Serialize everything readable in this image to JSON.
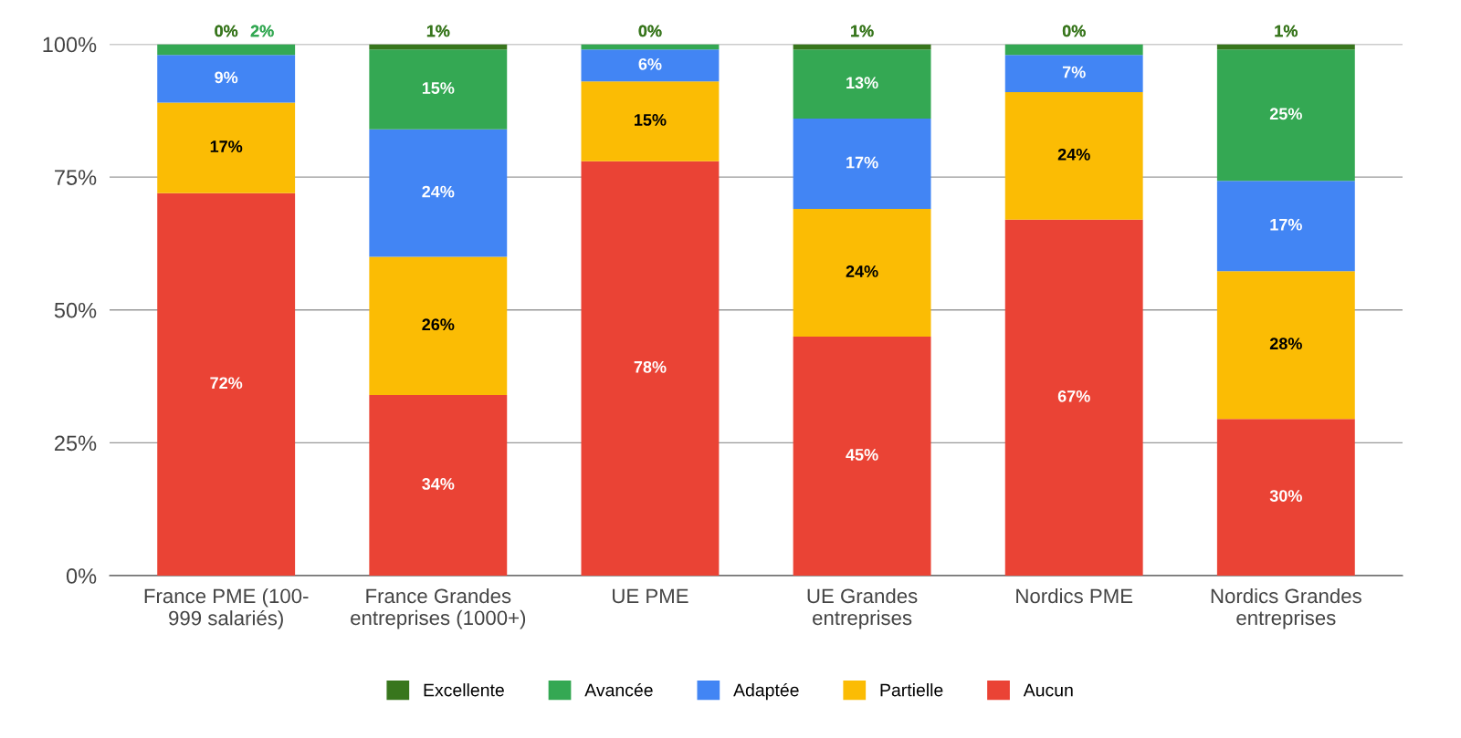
{
  "chart_data": {
    "type": "bar",
    "stacked": true,
    "categories": [
      "France PME (100-\n999 salariés)",
      "France Grandes\nentreprises (1000+)",
      "UE PME",
      "UE Grandes\nentreprises",
      "Nordics PME",
      "Nordics Grandes\nentreprises"
    ],
    "series": [
      {
        "name": "Aucun",
        "color": "#ea4335",
        "values": [
          72,
          34,
          78,
          45,
          67,
          29.5
        ],
        "value_labels": [
          "72%",
          "34%",
          "78%",
          "45%",
          "67%",
          "30%"
        ]
      },
      {
        "name": "Partielle",
        "color": "#fbbc04",
        "values": [
          17,
          26,
          15,
          24,
          24,
          27.8
        ],
        "value_labels": [
          "17%",
          "26%",
          "15%",
          "24%",
          "24%",
          "28%"
        ]
      },
      {
        "name": "Adaptée",
        "color": "#4285f4",
        "values": [
          9,
          24,
          6,
          17,
          7,
          17
        ],
        "value_labels": [
          "9%",
          "24%",
          "6%",
          "17%",
          "7%",
          "17%"
        ]
      },
      {
        "name": "Avancée",
        "color": "#34a853",
        "values": [
          2,
          15,
          1,
          13,
          2,
          24.7
        ],
        "value_labels": [
          "2%",
          "15%",
          null,
          "13%",
          null,
          "25%"
        ]
      },
      {
        "name": "Excellente",
        "color": "#38761d",
        "values": [
          0,
          1,
          0,
          1,
          0,
          1
        ],
        "value_labels": [
          "0%",
          "1%",
          "0%",
          "1%",
          "0%",
          "1%"
        ]
      }
    ],
    "ylim": [
      0,
      100
    ],
    "yticks": [
      {
        "value": 0,
        "label": "0%"
      },
      {
        "value": 25,
        "label": "25%"
      },
      {
        "value": 50,
        "label": "50%"
      },
      {
        "value": 75,
        "label": "75%"
      },
      {
        "value": 100,
        "label": "100%"
      }
    ],
    "grid": "y",
    "legend": "bottom"
  }
}
